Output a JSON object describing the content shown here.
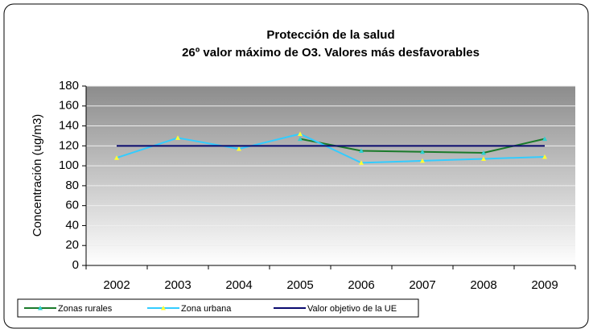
{
  "chart_data": {
    "type": "line",
    "title": "Protección de la salud",
    "subtitle": "26º valor máximo de O3. Valores más desfavorables",
    "y_label": "Concentración (ug/m3)",
    "categories": [
      "2002",
      "2003",
      "2004",
      "2005",
      "2006",
      "2007",
      "2008",
      "2009"
    ],
    "series": [
      {
        "name": "Zonas rurales",
        "color": "#1a7a2a",
        "marker_color": "#2fd0d0",
        "values": [
          null,
          null,
          null,
          127,
          115,
          114,
          113,
          127
        ]
      },
      {
        "name": "Zona urbana",
        "color": "#33ccff",
        "marker_color": "#ffff33",
        "values": [
          108,
          128,
          117,
          132,
          103,
          105,
          107,
          109
        ]
      },
      {
        "name": "Valor objetivo de la UE",
        "color": "#0a0a6e",
        "values": [
          120,
          120,
          120,
          120,
          120,
          120,
          120,
          120
        ]
      }
    ],
    "ylim": [
      0,
      180
    ],
    "yticks": [
      0,
      20,
      40,
      60,
      80,
      100,
      120,
      140,
      160,
      180
    ],
    "grid": true
  }
}
